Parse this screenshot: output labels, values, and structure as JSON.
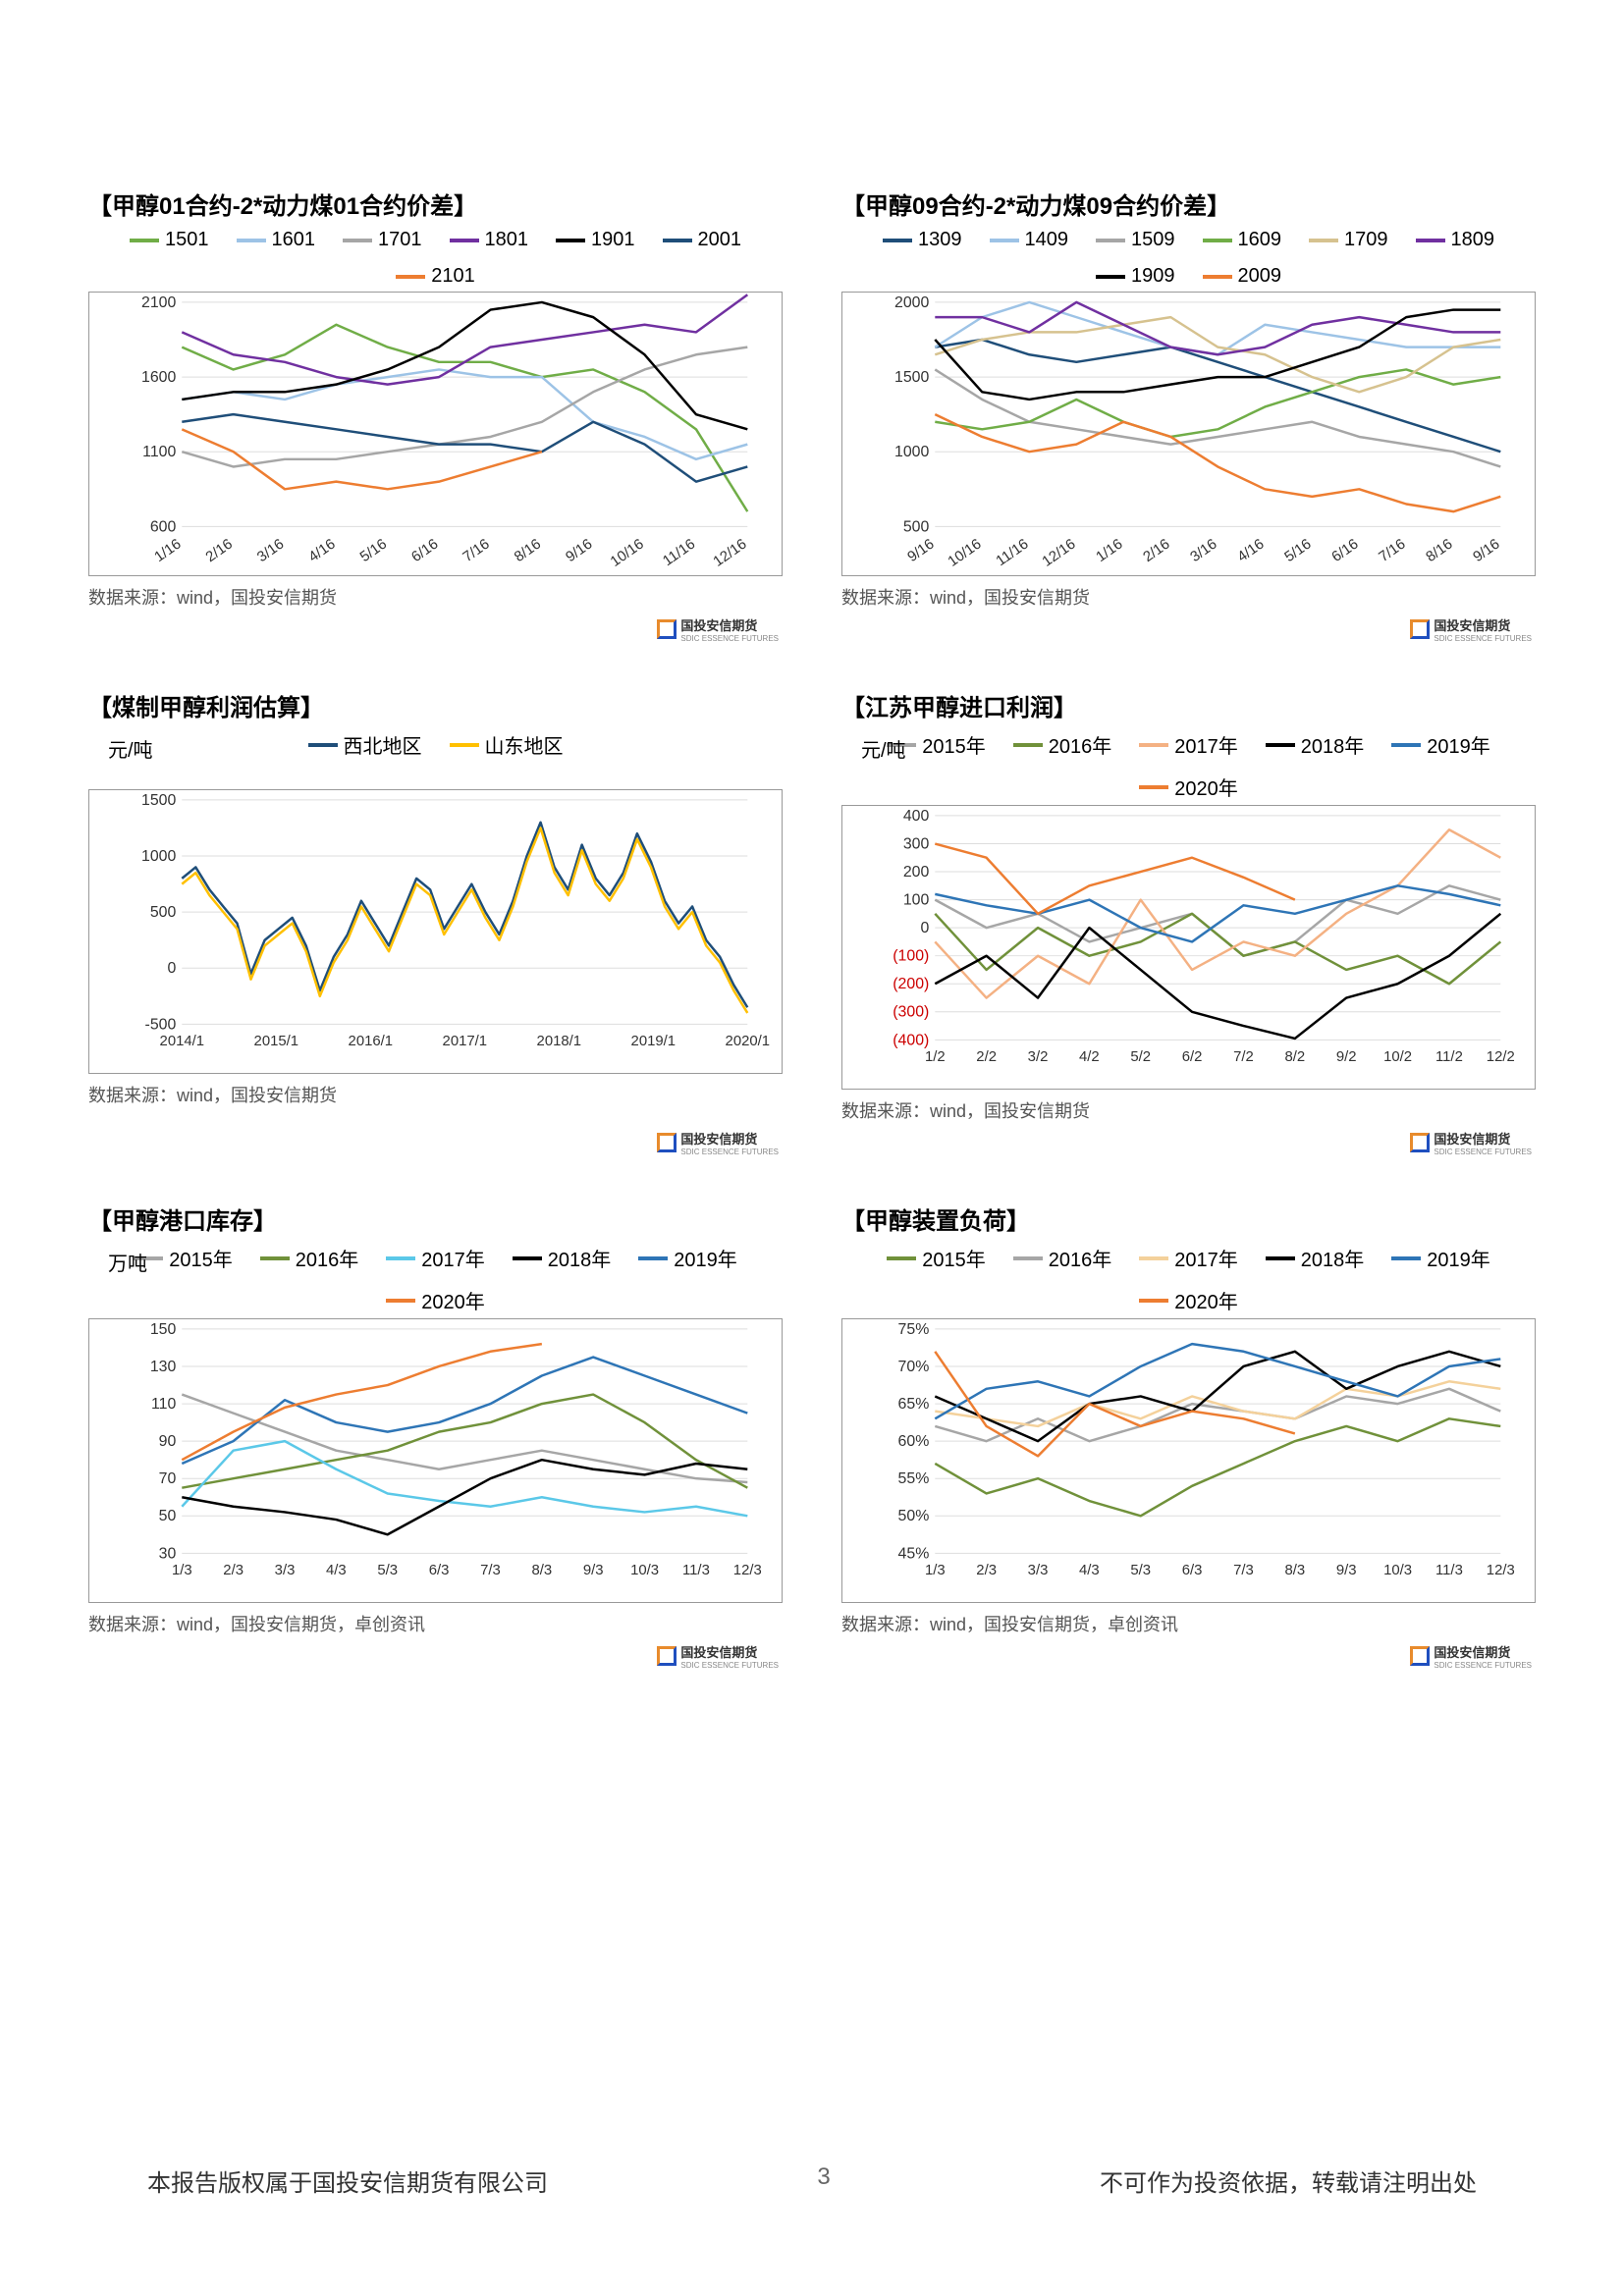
{
  "page": {
    "number": "3",
    "copyright_left": "本报告版权属于国投安信期货有限公司",
    "copyright_right": "不可作为投资依据，转载请注明出处",
    "brand": "国投安信期货",
    "brand_sub": "SDIC ESSENCE FUTURES"
  },
  "charts": [
    {
      "id": "c1",
      "title": "【甲醇01合约-2*动力煤01合约价差】",
      "type": "line",
      "ylim": [
        600,
        2100
      ],
      "yticks": [
        600,
        1100,
        1600,
        2100
      ],
      "xticks": [
        "1/16",
        "2/16",
        "3/16",
        "4/16",
        "5/16",
        "6/16",
        "7/16",
        "8/16",
        "9/16",
        "10/16",
        "11/16",
        "12/16"
      ],
      "x_rotate": true,
      "series": [
        {
          "label": "1501",
          "color": "#70ad47",
          "data": [
            1800,
            1650,
            1750,
            1950,
            1800,
            1700,
            1700,
            1600,
            1650,
            1500,
            1250,
            700
          ]
        },
        {
          "label": "1601",
          "color": "#9dc3e6",
          "data": [
            1450,
            1500,
            1450,
            1550,
            1600,
            1650,
            1600,
            1600,
            1300,
            1200,
            1050,
            1150
          ]
        },
        {
          "label": "1701",
          "color": "#a6a6a6",
          "data": [
            1100,
            1000,
            1050,
            1050,
            1100,
            1150,
            1200,
            1300,
            1500,
            1650,
            1750,
            1800
          ]
        },
        {
          "label": "1801",
          "color": "#7030a0",
          "data": [
            1900,
            1750,
            1700,
            1600,
            1550,
            1600,
            1800,
            1850,
            1900,
            1950,
            1900,
            2150
          ]
        },
        {
          "label": "1901",
          "color": "#000000",
          "data": [
            1450,
            1500,
            1500,
            1550,
            1650,
            1800,
            2050,
            2100,
            2000,
            1750,
            1350,
            1250
          ]
        },
        {
          "label": "2001",
          "color": "#1f4e79",
          "data": [
            1300,
            1350,
            1300,
            1250,
            1200,
            1150,
            1150,
            1100,
            1300,
            1150,
            900,
            1000
          ]
        },
        {
          "label": "2101",
          "color": "#ed7d31",
          "data": [
            1250,
            1100,
            850,
            900,
            850,
            900,
            1000,
            1100,
            null,
            null,
            null,
            null
          ]
        }
      ],
      "source": "数据来源：wind，国投安信期货"
    },
    {
      "id": "c2",
      "title": "【甲醇09合约-2*动力煤09合约价差】",
      "type": "line",
      "ylim": [
        500,
        2000
      ],
      "yticks": [
        500,
        1000,
        1500,
        2000
      ],
      "xticks": [
        "9/16",
        "10/16",
        "11/16",
        "12/16",
        "1/16",
        "2/16",
        "3/16",
        "4/16",
        "5/16",
        "6/16",
        "7/16",
        "8/16",
        "9/16"
      ],
      "x_rotate": true,
      "series": [
        {
          "label": "1309",
          "color": "#1f4e79",
          "data": [
            1700,
            1750,
            1650,
            1600,
            1650,
            1700,
            1600,
            1500,
            1400,
            1300,
            1200,
            1100,
            1000
          ]
        },
        {
          "label": "1409",
          "color": "#9dc3e6",
          "data": [
            1700,
            1900,
            2000,
            1900,
            1800,
            1700,
            1650,
            1850,
            1800,
            1750,
            1700,
            1700,
            1700
          ]
        },
        {
          "label": "1509",
          "color": "#a6a6a6",
          "data": [
            1550,
            1350,
            1200,
            1150,
            1100,
            1050,
            1100,
            1150,
            1200,
            1100,
            1050,
            1000,
            900
          ]
        },
        {
          "label": "1609",
          "color": "#70ad47",
          "data": [
            1200,
            1150,
            1200,
            1350,
            1200,
            1100,
            1150,
            1300,
            1400,
            1500,
            1550,
            1450,
            1500
          ]
        },
        {
          "label": "1709",
          "color": "#d6c28f",
          "data": [
            1650,
            1750,
            1800,
            1800,
            1850,
            1900,
            1700,
            1650,
            1500,
            1400,
            1500,
            1700,
            1750
          ]
        },
        {
          "label": "1809",
          "color": "#7030a0",
          "data": [
            1900,
            1900,
            1800,
            2000,
            1850,
            1700,
            1650,
            1700,
            1850,
            1900,
            1850,
            1800,
            1800
          ]
        },
        {
          "label": "1909",
          "color": "#000000",
          "data": [
            1750,
            1400,
            1350,
            1400,
            1400,
            1450,
            1500,
            1500,
            1600,
            1700,
            1900,
            1950,
            1950
          ]
        },
        {
          "label": "2009",
          "color": "#ed7d31",
          "data": [
            1250,
            1100,
            1000,
            1050,
            1200,
            1100,
            900,
            750,
            700,
            750,
            650,
            600,
            700
          ]
        }
      ],
      "source": "数据来源：wind，国投安信期货"
    },
    {
      "id": "c3",
      "title": "【煤制甲醇利润估算】",
      "type": "line",
      "unit": "元/吨",
      "ylim": [
        -500,
        1500
      ],
      "yticks": [
        -500,
        0,
        500,
        1000,
        1500
      ],
      "xticks": [
        "2014/1",
        "2015/1",
        "2016/1",
        "2017/1",
        "2018/1",
        "2019/1",
        "2020/1"
      ],
      "x_rotate": false,
      "series": [
        {
          "label": "西北地区",
          "color": "#1f4e79",
          "data": [
            800,
            900,
            700,
            550,
            400,
            -50,
            250,
            350,
            450,
            200,
            -200,
            100,
            300,
            600,
            400,
            200,
            500,
            800,
            700,
            350,
            550,
            750,
            500,
            300,
            600,
            1000,
            1300,
            900,
            700,
            1100,
            800,
            650,
            850,
            1200,
            950,
            600,
            400,
            550,
            250,
            100,
            -150,
            -350
          ]
        },
        {
          "label": "山东地区",
          "color": "#ffc000",
          "data": [
            750,
            850,
            650,
            500,
            350,
            -100,
            200,
            300,
            400,
            150,
            -250,
            50,
            250,
            550,
            350,
            150,
            450,
            750,
            650,
            300,
            500,
            700,
            450,
            250,
            550,
            950,
            1250,
            850,
            650,
            1050,
            750,
            600,
            800,
            1150,
            900,
            550,
            350,
            500,
            200,
            50,
            -200,
            -400
          ]
        }
      ],
      "source": "数据来源：wind，国投安信期货"
    },
    {
      "id": "c4",
      "title": "【江苏甲醇进口利润】",
      "type": "line",
      "unit": "元/吨",
      "ylim": [
        -400,
        400
      ],
      "yticks": [
        -400,
        -300,
        -200,
        -100,
        0,
        100,
        200,
        300,
        400
      ],
      "neg_red": true,
      "xticks": [
        "1/2",
        "2/2",
        "3/2",
        "4/2",
        "5/2",
        "6/2",
        "7/2",
        "8/2",
        "9/2",
        "10/2",
        "11/2",
        "12/2"
      ],
      "x_rotate": false,
      "series": [
        {
          "label": "2015年",
          "color": "#a6a6a6",
          "data": [
            100,
            0,
            50,
            -50,
            0,
            50,
            -100,
            -50,
            100,
            50,
            150,
            100
          ]
        },
        {
          "label": "2016年",
          "color": "#70913a",
          "data": [
            50,
            -150,
            0,
            -100,
            -50,
            50,
            -100,
            -50,
            -150,
            -100,
            -200,
            -50
          ]
        },
        {
          "label": "2017年",
          "color": "#f4b183",
          "data": [
            -50,
            -250,
            -100,
            -200,
            100,
            -150,
            -50,
            -100,
            50,
            150,
            350,
            250
          ]
        },
        {
          "label": "2018年",
          "color": "#000000",
          "data": [
            -200,
            -100,
            -250,
            0,
            -150,
            -300,
            -350,
            -395,
            -250,
            -200,
            -100,
            50
          ]
        },
        {
          "label": "2019年",
          "color": "#2e75b6",
          "data": [
            120,
            80,
            50,
            100,
            0,
            -50,
            80,
            50,
            100,
            150,
            120,
            80
          ]
        },
        {
          "label": "2020年",
          "color": "#ed7d31",
          "data": [
            300,
            250,
            50,
            150,
            200,
            250,
            180,
            100,
            null,
            null,
            null,
            null
          ]
        }
      ],
      "source": "数据来源：wind，国投安信期货"
    },
    {
      "id": "c5",
      "title": "【甲醇港口库存】",
      "type": "line",
      "unit": "万吨",
      "ylim": [
        30,
        150
      ],
      "yticks": [
        30,
        50,
        70,
        90,
        110,
        130,
        150
      ],
      "xticks": [
        "1/3",
        "2/3",
        "3/3",
        "4/3",
        "5/3",
        "6/3",
        "7/3",
        "8/3",
        "9/3",
        "10/3",
        "11/3",
        "12/3"
      ],
      "x_rotate": false,
      "series": [
        {
          "label": "2015年",
          "color": "#a6a6a6",
          "data": [
            115,
            105,
            95,
            85,
            80,
            75,
            80,
            85,
            80,
            75,
            70,
            68
          ]
        },
        {
          "label": "2016年",
          "color": "#70913a",
          "data": [
            65,
            70,
            75,
            80,
            85,
            95,
            100,
            110,
            115,
            100,
            80,
            65
          ]
        },
        {
          "label": "2017年",
          "color": "#5bc8e8",
          "data": [
            55,
            85,
            90,
            75,
            62,
            58,
            55,
            60,
            55,
            52,
            55,
            50
          ]
        },
        {
          "label": "2018年",
          "color": "#000000",
          "data": [
            60,
            55,
            52,
            48,
            40,
            55,
            70,
            80,
            75,
            72,
            78,
            75
          ]
        },
        {
          "label": "2019年",
          "color": "#2e75b6",
          "data": [
            78,
            90,
            112,
            100,
            95,
            100,
            110,
            125,
            135,
            125,
            115,
            105
          ]
        },
        {
          "label": "2020年",
          "color": "#ed7d31",
          "data": [
            80,
            95,
            108,
            115,
            120,
            130,
            138,
            142,
            null,
            null,
            null,
            null
          ]
        }
      ],
      "source": "数据来源：wind，国投安信期货，卓创资讯"
    },
    {
      "id": "c6",
      "title": "【甲醇装置负荷】",
      "type": "line",
      "ylim": [
        45,
        75
      ],
      "yticks": [
        45,
        50,
        55,
        60,
        65,
        70,
        75
      ],
      "ytick_suffix": "%",
      "xticks": [
        "1/3",
        "2/3",
        "3/3",
        "4/3",
        "5/3",
        "6/3",
        "7/3",
        "8/3",
        "9/3",
        "10/3",
        "11/3",
        "12/3"
      ],
      "x_rotate": false,
      "series": [
        {
          "label": "2015年",
          "color": "#70913a",
          "data": [
            57,
            53,
            55,
            52,
            50,
            54,
            57,
            60,
            62,
            60,
            63,
            62
          ]
        },
        {
          "label": "2016年",
          "color": "#a6a6a6",
          "data": [
            62,
            60,
            63,
            60,
            62,
            65,
            64,
            63,
            66,
            65,
            67,
            64
          ]
        },
        {
          "label": "2017年",
          "color": "#f4d19b",
          "data": [
            64,
            63,
            62,
            65,
            63,
            66,
            64,
            63,
            67,
            66,
            68,
            67
          ]
        },
        {
          "label": "2018年",
          "color": "#000000",
          "data": [
            66,
            63,
            60,
            65,
            66,
            64,
            70,
            72,
            67,
            70,
            72,
            70
          ]
        },
        {
          "label": "2019年",
          "color": "#2e75b6",
          "data": [
            63,
            67,
            68,
            66,
            70,
            73,
            72,
            70,
            68,
            66,
            70,
            71
          ]
        },
        {
          "label": "2020年",
          "color": "#ed7d31",
          "data": [
            72,
            62,
            58,
            65,
            62,
            64,
            63,
            61,
            null,
            null,
            null,
            null
          ]
        }
      ],
      "source": "数据来源：wind，国投安信期货，卓创资讯"
    }
  ]
}
